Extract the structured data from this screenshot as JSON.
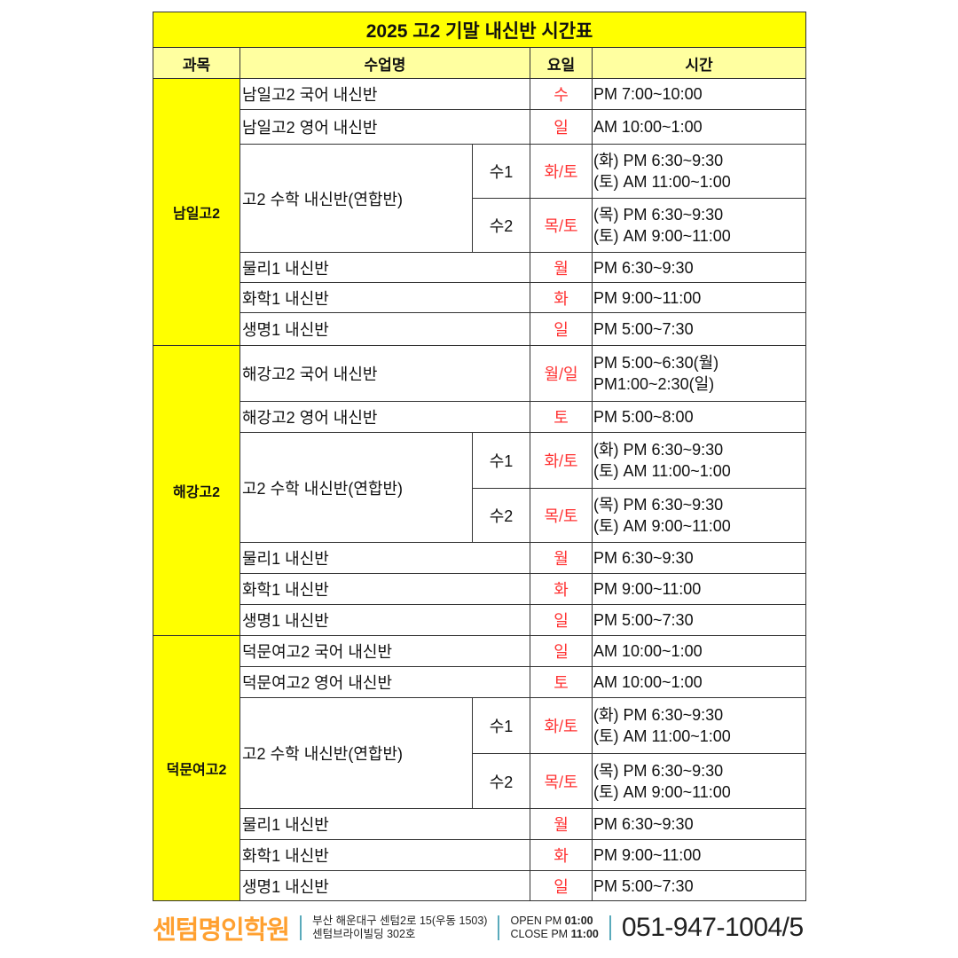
{
  "title": "2025 고2 기말 내신반 시간표",
  "headers": {
    "subject": "과목",
    "class": "수업명",
    "day": "요일",
    "time": "시간"
  },
  "colors": {
    "title_bg": "#ffff00",
    "header_bg": "#ffffa0",
    "day_text": "#ff3333",
    "brand": "#ffa030"
  },
  "groups": [
    {
      "subject": "남일고2",
      "rows": [
        {
          "name": "남일고2 국어 내신반",
          "day": "수",
          "time": [
            "PM 7:00~10:00"
          ]
        },
        {
          "name": "남일고2 영어 내신반",
          "day": "일",
          "time": [
            "AM 10:00~1:00"
          ]
        },
        {
          "name": "고2 수학 내신반(연합반)",
          "subs": [
            {
              "label": "수1",
              "day": "화/토",
              "time": [
                "(화) PM 6:30~9:30",
                "(토) AM 11:00~1:00"
              ]
            },
            {
              "label": "수2",
              "day": "목/토",
              "time": [
                "(목) PM 6:30~9:30",
                "(토) AM 9:00~11:00"
              ]
            }
          ]
        },
        {
          "name": "물리1 내신반",
          "day": "월",
          "time": [
            "PM 6:30~9:30"
          ]
        },
        {
          "name": "화학1 내신반",
          "day": "화",
          "time": [
            "PM 9:00~11:00"
          ]
        },
        {
          "name": "생명1 내신반",
          "day": "일",
          "time": [
            "PM 5:00~7:30"
          ]
        }
      ]
    },
    {
      "subject": "해강고2",
      "rows": [
        {
          "name": "해강고2 국어 내신반",
          "day": "월/일",
          "time": [
            "PM 5:00~6:30(월)",
            "PM1:00~2:30(일)"
          ]
        },
        {
          "name": "해강고2 영어 내신반",
          "day": "토",
          "time": [
            "PM 5:00~8:00"
          ]
        },
        {
          "name": "고2 수학 내신반(연합반)",
          "subs": [
            {
              "label": "수1",
              "day": "화/토",
              "time": [
                "(화) PM 6:30~9:30",
                "(토) AM 11:00~1:00"
              ]
            },
            {
              "label": "수2",
              "day": "목/토",
              "time": [
                "(목) PM 6:30~9:30",
                "(토) AM 9:00~11:00"
              ]
            }
          ]
        },
        {
          "name": "물리1 내신반",
          "day": "월",
          "time": [
            "PM 6:30~9:30"
          ]
        },
        {
          "name": "화학1 내신반",
          "day": "화",
          "time": [
            "PM 9:00~11:00"
          ]
        },
        {
          "name": "생명1 내신반",
          "day": "일",
          "time": [
            "PM 5:00~7:30"
          ]
        }
      ]
    },
    {
      "subject": "덕문여고2",
      "rows": [
        {
          "name": "덕문여고2 국어 내신반",
          "day": "일",
          "time": [
            "AM 10:00~1:00"
          ]
        },
        {
          "name": "덕문여고2 영어 내신반",
          "day": "토",
          "time": [
            "AM 10:00~1:00"
          ]
        },
        {
          "name": "고2 수학 내신반(연합반)",
          "subs": [
            {
              "label": "수1",
              "day": "화/토",
              "time": [
                "(화) PM 6:30~9:30",
                "(토) AM 11:00~1:00"
              ]
            },
            {
              "label": "수2",
              "day": "목/토",
              "time": [
                "(목) PM 6:30~9:30",
                "(토) AM 9:00~11:00"
              ]
            }
          ]
        },
        {
          "name": "물리1 내신반",
          "day": "월",
          "time": [
            "PM 6:30~9:30"
          ]
        },
        {
          "name": "화학1 내신반",
          "day": "화",
          "time": [
            "PM 9:00~11:00"
          ]
        },
        {
          "name": "생명1 내신반",
          "day": "일",
          "time": [
            "PM 5:00~7:30"
          ]
        }
      ]
    }
  ],
  "footer": {
    "brand": "센텀명인학원",
    "address": [
      "부산 해운대구 센텀2로 15(우동 1503)",
      "센텀브라이빌딩 302호"
    ],
    "open_label": "OPEN  PM",
    "open_time": "01:00",
    "close_label": "CLOSE PM",
    "close_time": "11:00",
    "phone": "051-947-1004/5"
  }
}
